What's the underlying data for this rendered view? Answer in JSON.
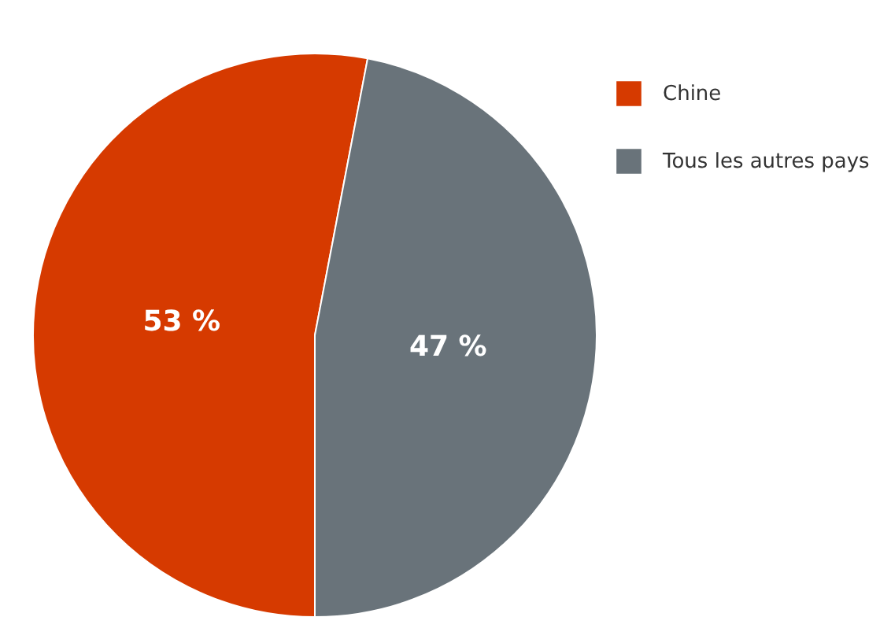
{
  "chart_data": {
    "type": "pie",
    "categories": [
      "Chine",
      "Tous les autres pays"
    ],
    "values": [
      53,
      47
    ],
    "colors": [
      "#d63a00",
      "#69737a"
    ],
    "value_labels": [
      "53 %",
      "47 %"
    ],
    "legend": "top right"
  }
}
